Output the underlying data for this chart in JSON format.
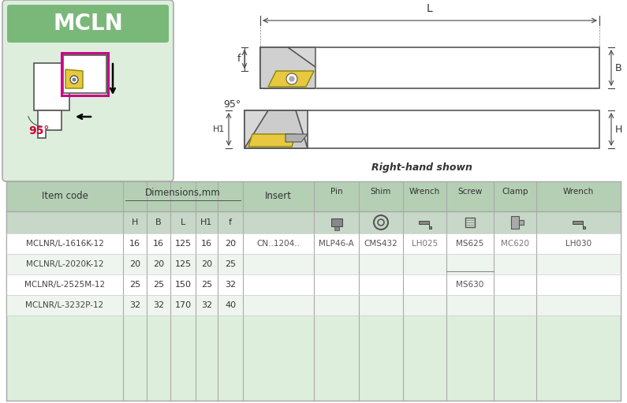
{
  "title": "MCLN",
  "bg_color": "#f5f5f5",
  "header_bg": "#a8c8a8",
  "table_bg": "#ddeedd",
  "row_alt": "#eef5ee",
  "row_white": "#ffffff",
  "border_color": "#aaaaaa",
  "text_color": "#333333",
  "insert_yellow": "#e8c840",
  "tool_gray": "#e8e8e8",
  "tool_dark": "#cccccc",
  "angle_color": "#cc0033",
  "dim_header": "Dimensions,mm",
  "right_hand_shown": "Right-hand shown",
  "diagram_label_L": "L",
  "diagram_label_f": "f",
  "diagram_label_B": "B",
  "diagram_label_H1": "H1",
  "diagram_label_H": "H",
  "diagram_label_angle": "95°",
  "rows": [
    [
      "MCLNR/L-1616K-12",
      "16",
      "16",
      "125",
      "16",
      "20",
      "CN..1204..",
      "MLP46-A",
      "CMS432",
      "LH025",
      "MS625",
      "MC620",
      "LH030"
    ],
    [
      "MCLNR/L-2020K-12",
      "20",
      "20",
      "125",
      "20",
      "25",
      "",
      "",
      "",
      "",
      "",
      "",
      ""
    ],
    [
      "MCLNR/L-2525M-12",
      "25",
      "25",
      "150",
      "25",
      "32",
      "",
      "",
      "",
      "",
      "MS630",
      "",
      ""
    ],
    [
      "MCLNR/L-3232P-12",
      "32",
      "32",
      "170",
      "32",
      "40",
      "",
      "",
      "",
      "",
      "",
      "",
      ""
    ]
  ]
}
